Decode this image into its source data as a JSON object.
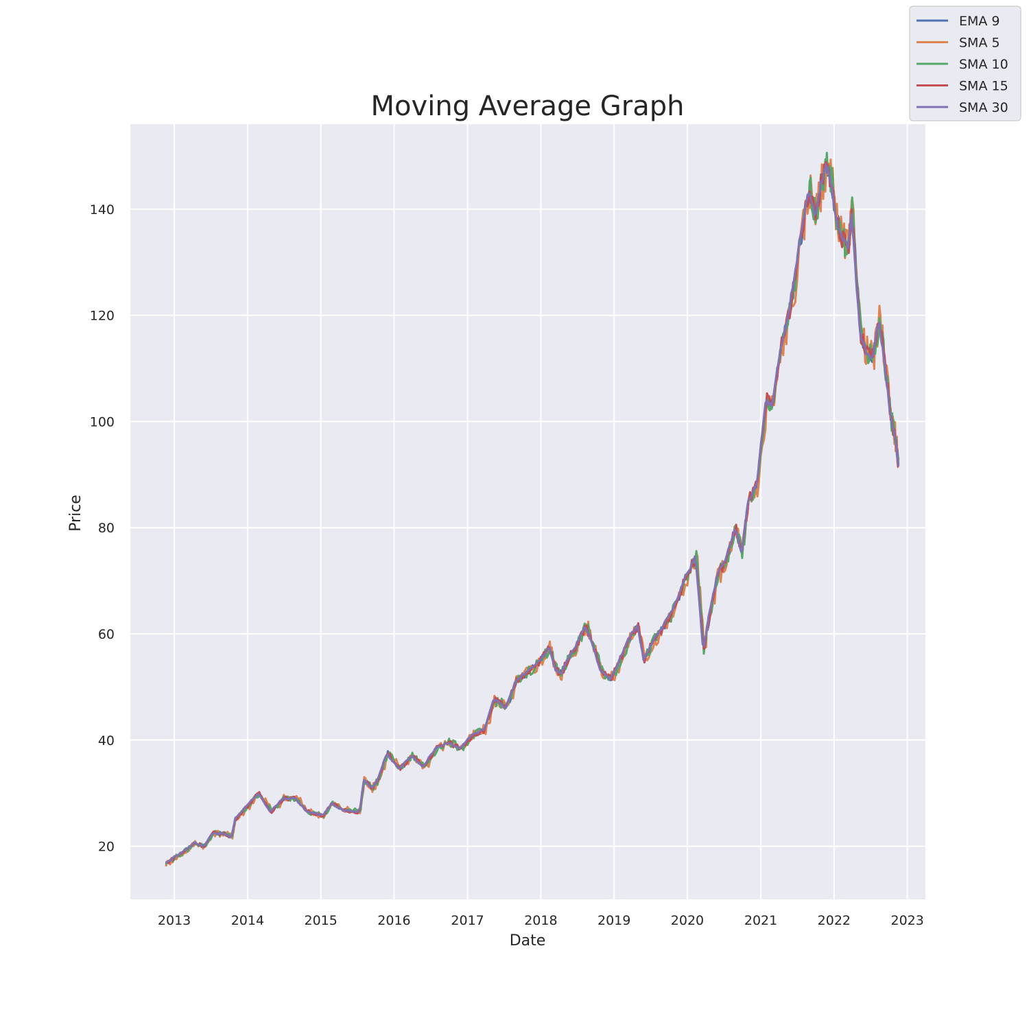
{
  "chart_data": {
    "type": "line",
    "title": "Moving Average Graph",
    "xlabel": "Date",
    "ylabel": "Price",
    "xlim": [
      "2012-05-27",
      "2023-04-01"
    ],
    "ylim": [
      10,
      156
    ],
    "x_ticks": [
      "2013",
      "2014",
      "2015",
      "2016",
      "2017",
      "2018",
      "2019",
      "2020",
      "2021",
      "2022",
      "2023"
    ],
    "y_ticks": [
      20,
      40,
      60,
      80,
      100,
      120,
      140
    ],
    "grid": true,
    "legend_position": "top-right",
    "series": [
      {
        "name": "EMA 9",
        "color": "#4c72b0"
      },
      {
        "name": "SMA 5",
        "color": "#dd8452"
      },
      {
        "name": "SMA 10",
        "color": "#55a868"
      },
      {
        "name": "SMA 15",
        "color": "#c44e52"
      },
      {
        "name": "SMA 30",
        "color": "#8172b3"
      }
    ],
    "x": [
      "2012-11-20",
      "2013-01-01",
      "2013-03-01",
      "2013-04-15",
      "2013-06-01",
      "2013-07-15",
      "2013-09-01",
      "2013-10-15",
      "2013-11-01",
      "2014-01-01",
      "2014-03-01",
      "2014-05-01",
      "2014-07-01",
      "2014-09-01",
      "2014-11-01",
      "2015-01-15",
      "2015-03-01",
      "2015-05-01",
      "2015-07-15",
      "2015-08-05",
      "2015-09-15",
      "2015-10-15",
      "2015-12-01",
      "2016-02-01",
      "2016-04-01",
      "2016-06-01",
      "2016-08-01",
      "2016-10-01",
      "2016-12-01",
      "2017-02-01",
      "2017-04-01",
      "2017-05-15",
      "2017-06-15",
      "2017-07-15",
      "2017-09-01",
      "2017-11-01",
      "2018-01-01",
      "2018-02-15",
      "2018-03-15",
      "2018-04-15",
      "2018-05-15",
      "2018-07-01",
      "2018-08-15",
      "2018-09-15",
      "2018-11-01",
      "2018-12-20",
      "2019-02-01",
      "2019-04-01",
      "2019-05-01",
      "2019-06-01",
      "2019-07-15",
      "2019-09-01",
      "2019-11-01",
      "2020-01-01",
      "2020-02-15",
      "2020-03-23",
      "2020-04-15",
      "2020-06-01",
      "2020-07-15",
      "2020-08-31",
      "2020-09-30",
      "2020-11-01",
      "2020-12-15",
      "2021-02-01",
      "2021-03-01",
      "2021-04-15",
      "2021-06-01",
      "2021-08-01",
      "2021-09-01",
      "2021-10-01",
      "2021-11-01",
      "2021-11-22",
      "2021-12-15",
      "2022-01-15",
      "2022-02-15",
      "2022-03-15",
      "2022-04-01",
      "2022-05-15",
      "2022-06-15",
      "2022-07-15",
      "2022-08-15",
      "2022-09-15",
      "2022-10-15",
      "2022-11-01",
      "2022-11-18"
    ],
    "values": [
      16.7,
      17.8,
      19.2,
      20.7,
      20.0,
      22.5,
      22.4,
      21.8,
      25.0,
      27.5,
      30.0,
      26.5,
      29.0,
      29.0,
      26.5,
      25.8,
      28.0,
      26.8,
      26.5,
      32.5,
      31.0,
      32.5,
      37.5,
      34.5,
      37.0,
      35.0,
      38.5,
      39.5,
      38.5,
      41.0,
      42.0,
      47.5,
      47.0,
      46.0,
      51.0,
      53.0,
      55.0,
      57.5,
      53.5,
      52.5,
      55.0,
      58.0,
      61.5,
      58.5,
      53.0,
      51.5,
      55.0,
      60.0,
      61.5,
      55.0,
      58.5,
      61.0,
      65.0,
      71.0,
      74.5,
      57.0,
      62.0,
      71.0,
      74.0,
      80.0,
      75.0,
      85.0,
      88.0,
      104.0,
      103.0,
      114.0,
      122.0,
      137.0,
      144.0,
      139.0,
      145.0,
      148.0,
      146.0,
      138.0,
      134.0,
      133.0,
      140.0,
      116.0,
      113.0,
      112.0,
      119.0,
      110.0,
      100.0,
      97.5,
      92.0
    ]
  }
}
